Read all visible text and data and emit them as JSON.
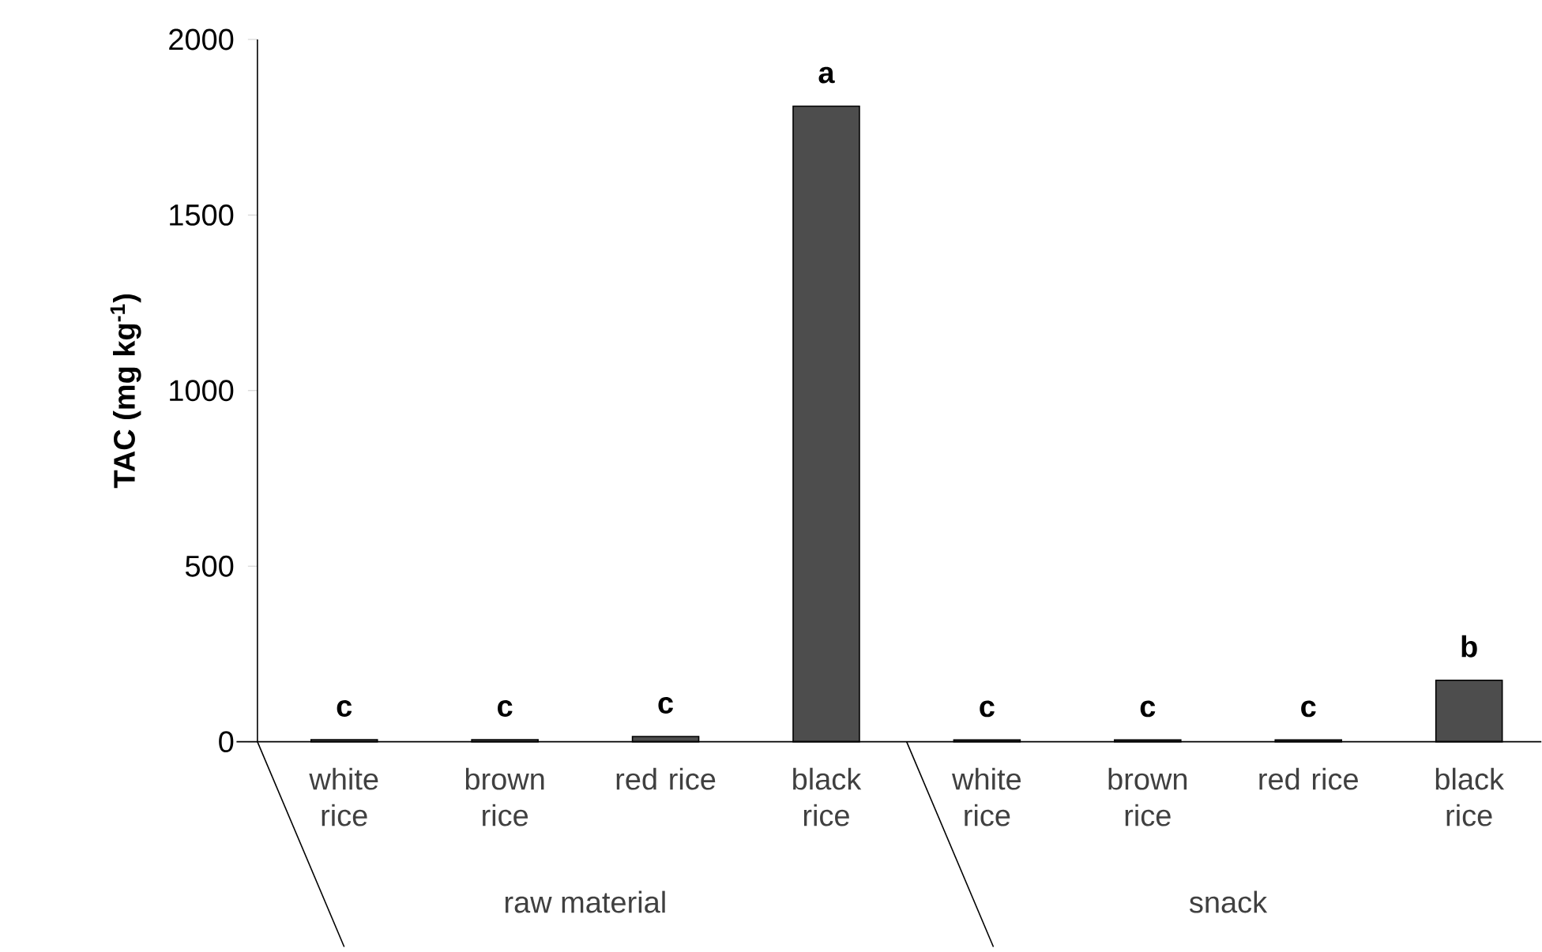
{
  "chart_data": {
    "type": "bar",
    "ylabel": "TAC (mg kg$^{-1}$)",
    "categories": [
      "white rice",
      "brown rice",
      "red rice",
      "black rice",
      "white rice",
      "brown rice",
      "red rice",
      "black rice"
    ],
    "values": [
      6,
      6,
      15,
      1810,
      5,
      5,
      5,
      175
    ],
    "value_labels": [
      "c",
      "c",
      "c",
      "a",
      "c",
      "c",
      "c",
      "b"
    ],
    "color": "#4d4d4d",
    "ylim": [
      0,
      2000
    ],
    "yticks": [
      0,
      500,
      1000,
      1500,
      2000
    ],
    "annotations": [
      "raw material",
      "snack"
    ],
    "grid": false
  }
}
